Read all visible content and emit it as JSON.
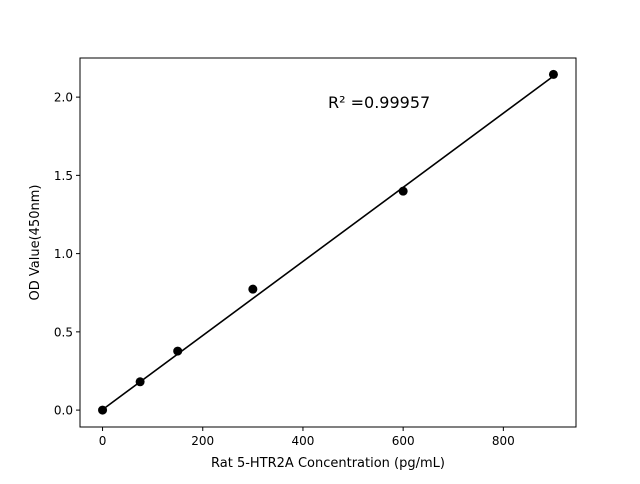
{
  "chart_data": {
    "type": "scatter",
    "title": "",
    "xlabel": "Rat 5-HTR2A Concentration (pg/mL)",
    "ylabel": "OD Value(450nm)",
    "xlim": [
      -45,
      945
    ],
    "ylim": [
      -0.108,
      2.25
    ],
    "xticks": [
      0,
      200,
      400,
      600,
      800
    ],
    "xtick_labels": [
      "0",
      "200",
      "400",
      "600",
      "800"
    ],
    "yticks": [
      0.0,
      0.5,
      1.0,
      1.5,
      2.0
    ],
    "ytick_labels": [
      "0.0",
      "0.5",
      "1.0",
      "1.5",
      "2.0"
    ],
    "grid": false,
    "series": [
      {
        "type": "scatter",
        "color": "#000000",
        "x": [
          0,
          75,
          150,
          300,
          600,
          900
        ],
        "y": [
          0.0,
          0.181,
          0.377,
          0.773,
          1.399,
          2.145
        ]
      },
      {
        "type": "line",
        "color": "#000000",
        "x": [
          0,
          900
        ],
        "y": [
          0.003,
          2.134
        ]
      }
    ],
    "annotation": "R² =0.99957"
  }
}
